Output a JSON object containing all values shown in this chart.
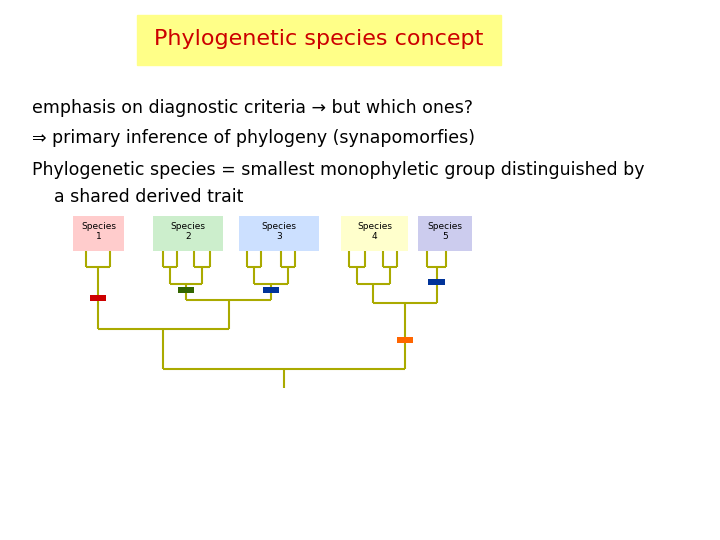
{
  "title": "Phylogenetic species concept",
  "title_color": "#cc0000",
  "title_bg": "#ffff88",
  "bg_color": "#ffffff",
  "line1": "emphasis on diagnostic criteria → but which ones?",
  "line2": "⇒ primary inference of phylogeny (synapomorfies)",
  "line3": "Phylogenetic species = smallest monophyletic group distinguished by",
  "line4": "    a shared derived trait",
  "text_color": "#000000",
  "text_fontsize": 12.5,
  "title_fontsize": 16,
  "species_labels": [
    "Species\n1",
    "Species\n2",
    "Species\n3",
    "Species\n4",
    "Species\n5"
  ],
  "species_bg_colors": [
    "#ffcccc",
    "#cceecc",
    "#cce0ff",
    "#ffffcc",
    "#ccccee"
  ],
  "tree_color": "#aaaa00",
  "tree_lw": 1.5
}
